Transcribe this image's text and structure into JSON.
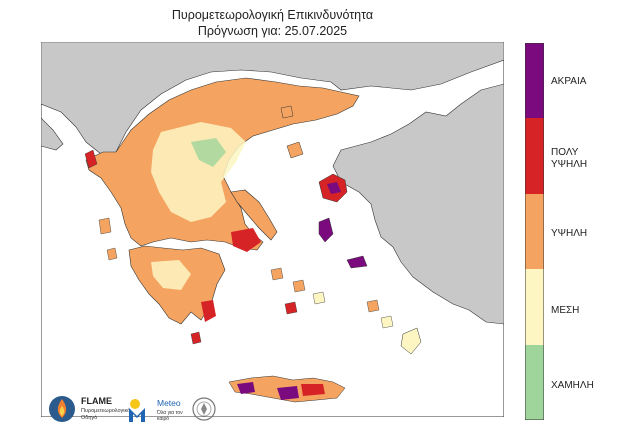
{
  "title": "Πυρομετεωρολογική Επικινδυνότητα",
  "subtitle": "Πρόγνωση για: 25.07.2025",
  "legend": [
    {
      "label_lines": [
        "ΑΚΡΑΙΑ"
      ],
      "color": "#7a0a7e"
    },
    {
      "label_lines": [
        "ΠΟΛΥ",
        "ΥΨΗΛΗ"
      ],
      "color": "#d62426"
    },
    {
      "label_lines": [
        "ΥΨΗΛΗ"
      ],
      "color": "#f4a460"
    },
    {
      "label_lines": [
        "ΜΕΣΗ"
      ],
      "color": "#fdf6c3"
    },
    {
      "label_lines": [
        "ΧΑΜΗΛΗ"
      ],
      "color": "#9fd49a"
    }
  ],
  "logos": {
    "flame_name": "FLAME",
    "flame_sub": "Πυρομετεωρολογικό Οδηγό",
    "meteo_name": "Meteo",
    "meteo_sub": "Όλα για τον καιρό"
  },
  "colors": {
    "sea": "#ffffff",
    "foreign_land": "#c8c8c8",
    "border": "#333333"
  }
}
